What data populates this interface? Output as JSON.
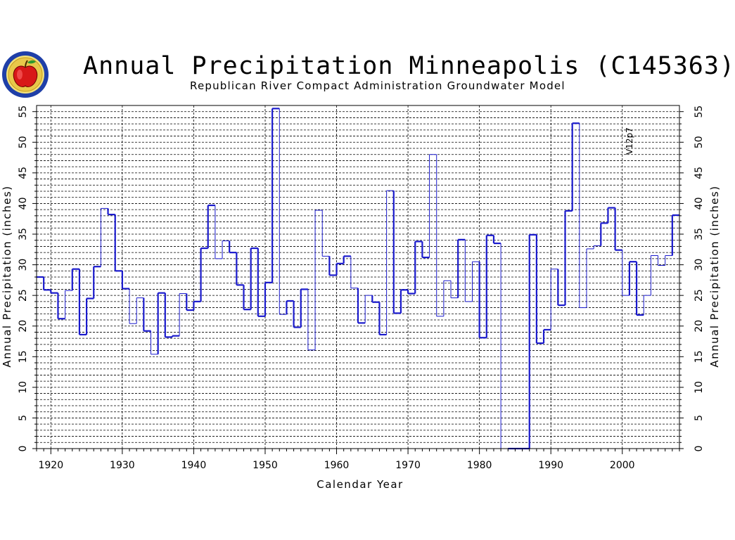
{
  "chart_data": {
    "type": "line",
    "step": true,
    "title": "Annual Precipitation Minneapolis (C145363)",
    "subtitle": "Republican River Compact Administration Groundwater Model",
    "xlabel": "Calendar Year",
    "ylabel": "Annual Precipitation (inches)",
    "xlim": [
      1918,
      2008
    ],
    "ylim": [
      0,
      56
    ],
    "xticks": [
      1920,
      1930,
      1940,
      1950,
      1960,
      1970,
      1980,
      1990,
      2000
    ],
    "yticks": [
      0,
      5,
      10,
      15,
      20,
      25,
      30,
      35,
      40,
      45,
      50,
      55
    ],
    "grid": true,
    "annotation": {
      "text": "V12p7",
      "x": 2001
    },
    "line_color": "#1a1acc",
    "series": [
      {
        "x": [
          1918,
          1919,
          1920,
          1921,
          1922,
          1923,
          1924,
          1925,
          1926,
          1927,
          1928,
          1929,
          1930,
          1931,
          1932,
          1933,
          1934,
          1935,
          1936,
          1937,
          1938,
          1939,
          1940,
          1941,
          1942,
          1943,
          1944,
          1945,
          1946,
          1947,
          1948,
          1949,
          1950,
          1951,
          1952,
          1953,
          1954,
          1955,
          1956,
          1957,
          1958,
          1959,
          1960,
          1961,
          1962,
          1963,
          1964,
          1965,
          1966,
          1967,
          1968,
          1969,
          1970,
          1971,
          1972,
          1973,
          1974,
          1975,
          1976,
          1977,
          1978,
          1979,
          1980,
          1981,
          1982,
          1983,
          1984,
          1985,
          1986,
          1987,
          1988,
          1989,
          1990,
          1991,
          1992,
          1993,
          1994,
          1995,
          1996,
          1997,
          1998,
          1999,
          2000,
          2001,
          2002,
          2003,
          2004,
          2005,
          2006,
          2007
        ],
        "y": [
          28.0,
          25.9,
          25.4,
          21.2,
          25.8,
          29.3,
          18.6,
          24.5,
          29.7,
          39.2,
          38.2,
          29.0,
          26.1,
          20.4,
          24.6,
          19.2,
          15.4,
          25.4,
          18.2,
          18.4,
          25.3,
          22.6,
          24.0,
          32.7,
          39.7,
          31.0,
          33.9,
          32.0,
          26.7,
          22.7,
          32.7,
          21.6,
          27.1,
          55.5,
          21.9,
          24.1,
          19.8,
          26.0,
          16.1,
          38.9,
          31.4,
          28.3,
          30.2,
          31.4,
          26.2,
          20.5,
          25.0,
          23.9,
          18.6,
          42.1,
          22.1,
          25.9,
          25.3,
          33.8,
          31.2,
          48.0,
          21.6,
          27.4,
          24.6,
          34.1,
          24.0,
          30.5,
          18.1,
          34.8,
          33.5,
          0,
          0,
          0,
          0,
          34.9,
          17.2,
          19.4,
          29.3,
          23.4,
          38.8,
          53.1,
          23.0,
          32.6,
          33.1,
          36.8,
          39.3,
          32.4,
          25.0,
          30.5,
          21.8,
          25.0,
          31.5,
          29.9,
          31.5,
          38.1
        ],
        "thin_years": [
          1922,
          1927,
          1931,
          1932,
          1934,
          1938,
          1943,
          1944,
          1952,
          1956,
          1957,
          1958,
          1962,
          1964,
          1967,
          1973,
          1974,
          1975,
          1976,
          1978,
          1979,
          1983,
          1990,
          1994,
          1995,
          1996,
          2000,
          2003,
          2004,
          2005,
          2006
        ]
      }
    ]
  }
}
